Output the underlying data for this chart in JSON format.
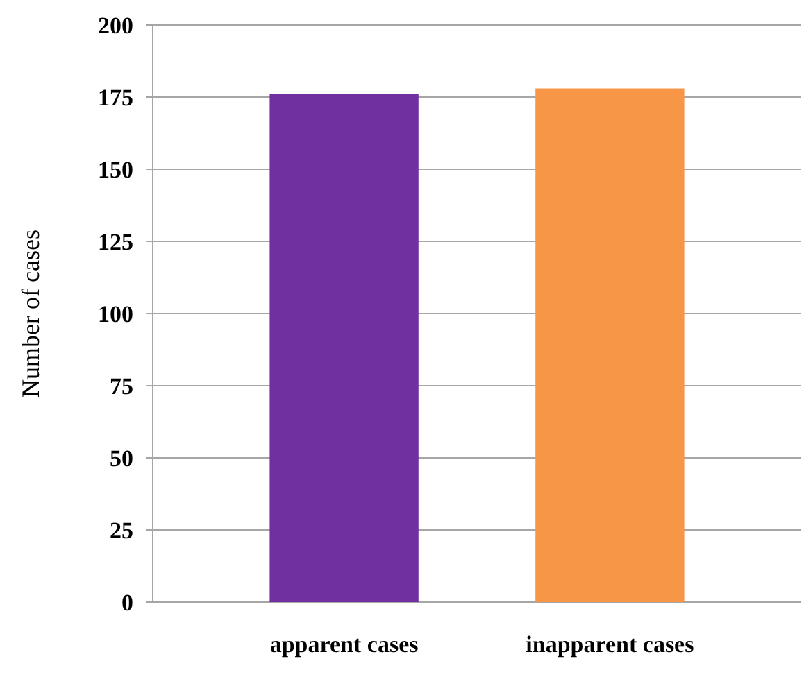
{
  "chart_data": {
    "type": "bar",
    "ylabel": "Number of cases",
    "categories": [
      "apparent cases",
      "inapparent cases"
    ],
    "values": [
      176,
      178
    ],
    "colors": [
      "#7030a0",
      "#f79646"
    ],
    "ylim": [
      0,
      200
    ],
    "yticks": [
      0,
      25,
      50,
      75,
      100,
      125,
      150,
      175,
      200
    ],
    "grid": "y"
  }
}
